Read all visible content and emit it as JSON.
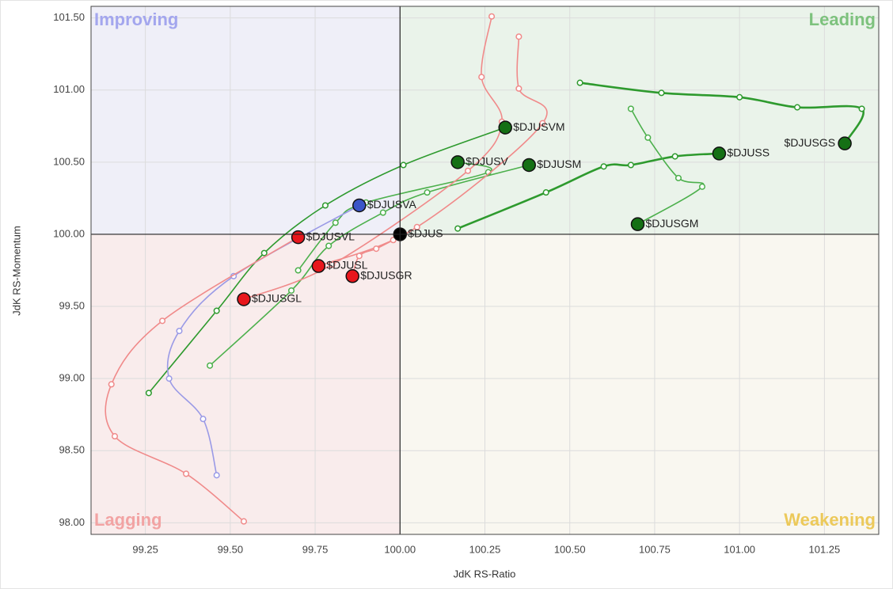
{
  "chart_data": {
    "type": "scatter",
    "x_label": "JdK RS-Ratio",
    "y_label": "JdK RS-Momentum",
    "xlim": [
      99.09,
      101.41
    ],
    "ylim": [
      97.92,
      101.58
    ],
    "xticks": [
      99.25,
      {
        "value": 99.5,
        "label": "99.50"
      },
      99.75,
      {
        "value": 100,
        "label": "100.00"
      },
      100.25,
      {
        "value": 100.5,
        "label": "100.50"
      },
      100.75,
      {
        "value": 101,
        "label": "101.00"
      },
      101.25
    ],
    "yticks": [
      {
        "value": 98,
        "label": "98.00"
      },
      {
        "value": 98.5,
        "label": "98.50"
      },
      {
        "value": 99,
        "label": "99.00"
      },
      {
        "value": 99.5,
        "label": "99.50"
      },
      {
        "value": 100,
        "label": "100.00"
      },
      {
        "value": 100.5,
        "label": "100.50"
      },
      {
        "value": 101,
        "label": "101.00"
      },
      {
        "value": 101.5,
        "label": "101.50"
      }
    ],
    "grid": true,
    "center": [
      100,
      100
    ],
    "quadrants": [
      {
        "name": "Improving",
        "corner": "top-left",
        "color": "#a3a6ee",
        "background": "#efeff8"
      },
      {
        "name": "Leading",
        "corner": "top-right",
        "color": "#7dc27d",
        "background": "#eaf3ea"
      },
      {
        "name": "Lagging",
        "corner": "bottom-left",
        "color": "#f2a3a3",
        "background": "#f9ecec"
      },
      {
        "name": "Weakening",
        "corner": "bottom-right",
        "color": "#ecc95a",
        "background": "#f9f7f0"
      }
    ],
    "series": [
      {
        "name": "$DJUSGS",
        "color": "#2e9a2e",
        "head_color": "#157015",
        "x": [
          100.53,
          100.77,
          101.0,
          101.17,
          101.36,
          101.31
        ],
        "y": [
          101.05,
          100.98,
          100.95,
          100.88,
          100.87,
          100.63
        ]
      },
      {
        "name": "$DJUSS",
        "color": "#2e9a2e",
        "head_color": "#157015",
        "x": [
          100.17,
          100.43,
          100.6,
          100.68,
          100.81,
          100.94
        ],
        "y": [
          100.04,
          100.29,
          100.47,
          100.48,
          100.54,
          100.56
        ]
      },
      {
        "name": "$DJUSGM",
        "color": "#4cb04c",
        "head_color": "#157015",
        "x": [
          100.68,
          100.73,
          100.82,
          100.89,
          100.7
        ],
        "y": [
          100.87,
          100.67,
          100.39,
          100.33,
          100.07
        ]
      },
      {
        "name": "$DJUSVM",
        "color": "#2e9a2e",
        "head_color": "#157015",
        "x": [
          99.26,
          99.46,
          99.6,
          99.78,
          100.01,
          100.31
        ],
        "y": [
          98.9,
          99.47,
          99.87,
          100.2,
          100.48,
          100.74
        ]
      },
      {
        "name": "$DJUSM",
        "color": "#4cb04c",
        "head_color": "#157015",
        "x": [
          99.44,
          99.68,
          99.79,
          99.95,
          100.08,
          100.38
        ],
        "y": [
          99.09,
          99.61,
          99.92,
          100.15,
          100.29,
          100.48
        ]
      },
      {
        "name": "$DJUSV",
        "color": "#4cb04c",
        "head_color": "#157015",
        "x": [
          99.7,
          99.81,
          99.9,
          100.26,
          100.17
        ],
        "y": [
          99.75,
          100.08,
          100.22,
          100.43,
          100.5
        ]
      },
      {
        "name": "$DJUSVA",
        "color": "#9a9ae6",
        "head_color": "#3b55c8",
        "x": [
          99.46,
          99.42,
          99.32,
          99.35,
          99.51,
          99.88
        ],
        "y": [
          98.33,
          98.72,
          99.0,
          99.33,
          99.71,
          100.2
        ]
      },
      {
        "name": "$DJUSVL",
        "color": "#f08a8a",
        "head_color": "#e8161c",
        "x": [
          99.54,
          99.37,
          99.16,
          99.15,
          99.3,
          99.7
        ],
        "y": [
          98.01,
          98.34,
          98.6,
          98.96,
          99.4,
          99.98
        ]
      },
      {
        "name": "$DJUSL",
        "color": "#f08a8a",
        "head_color": "#e8161c",
        "x": [
          100.35,
          100.35,
          100.42,
          100.05,
          99.76
        ],
        "y": [
          101.37,
          101.01,
          100.77,
          100.05,
          99.78
        ]
      },
      {
        "name": "$DJUSGL",
        "color": "#f08a8a",
        "head_color": "#e8161c",
        "x": [
          100.27,
          100.24,
          100.3,
          100.2,
          99.8,
          99.54
        ],
        "y": [
          101.51,
          101.09,
          100.78,
          100.44,
          99.79,
          99.55
        ]
      },
      {
        "name": "$DJUSGR",
        "color": "#f08a8a",
        "head_color": "#e8161c",
        "x": [
          99.98,
          99.93,
          99.88,
          99.86
        ],
        "y": [
          99.96,
          99.9,
          99.85,
          99.71
        ]
      },
      {
        "name": "$DJUS",
        "color": "#000000",
        "head_color": "#000000",
        "x": [
          100.0
        ],
        "y": [
          100.0
        ]
      }
    ]
  }
}
